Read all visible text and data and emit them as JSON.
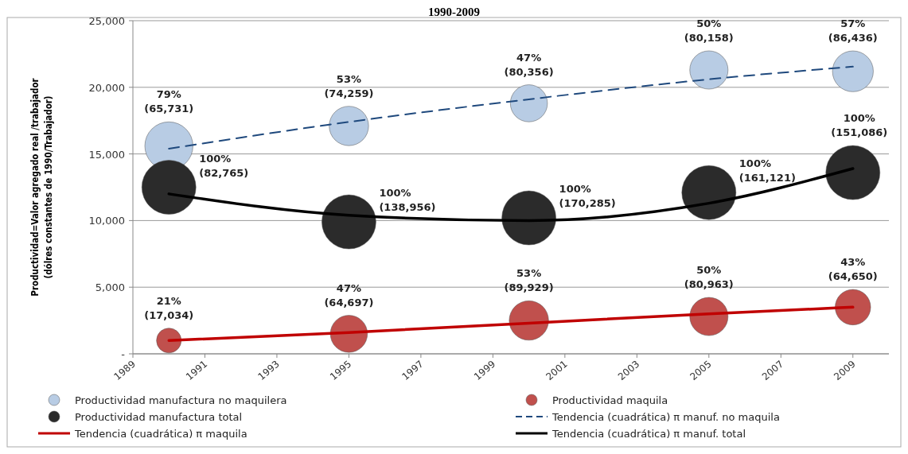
{
  "chart_data": {
    "type": "bubble",
    "title": "1990-2009",
    "ylabel": "Productividad=Valor agregado real /trabajador\n(dólres constantes de 1990/Trabajador)",
    "x": [
      1990,
      1995,
      2000,
      2005,
      2009
    ],
    "xlim": [
      1989,
      2010
    ],
    "xticks": [
      1989,
      1991,
      1993,
      1995,
      1997,
      1999,
      2001,
      2003,
      2005,
      2007,
      2009
    ],
    "ylim": [
      0,
      25000
    ],
    "yticks": [
      {
        "value": 0,
        "label": "-"
      },
      {
        "value": 5000,
        "label": "5,000"
      },
      {
        "value": 10000,
        "label": "10,000"
      },
      {
        "value": 15000,
        "label": "15,000"
      },
      {
        "value": 20000,
        "label": "20,000"
      },
      {
        "value": 25000,
        "label": "25,000"
      }
    ],
    "grid": "y",
    "legend": "bottom",
    "series": [
      {
        "name": "Productividad manufactura no maquilera",
        "color": "#b8cce4",
        "values": [
          15600,
          17100,
          18800,
          21300,
          21200
        ],
        "sizes": [
          0.79,
          0.53,
          0.47,
          0.5,
          0.57
        ],
        "value_labels": [
          "79%\n(65,731)",
          "53%\n(74,259)",
          "47%\n(80,356)",
          "50%\n(80,158)",
          "57%\n(86,436)"
        ]
      },
      {
        "name": "Productividad maquila",
        "color": "#c0504d",
        "values": [
          1000,
          1500,
          2500,
          2800,
          3500
        ],
        "sizes": [
          0.21,
          0.47,
          0.53,
          0.5,
          0.43
        ],
        "value_labels": [
          "21%\n(17,034)",
          "47%\n(64,697)",
          "53%\n(89,929)",
          "50%\n(80,963)",
          "43%\n(64,650)"
        ]
      },
      {
        "name": "Productividad manufactura total",
        "color": "#2b2b2b",
        "values": [
          12500,
          9900,
          10200,
          12100,
          13600
        ],
        "sizes": [
          1,
          1,
          1,
          1,
          1
        ],
        "value_labels": [
          "100%\n(82,765)",
          "100%\n(138,956)",
          "100%\n(170,285)",
          "100%\n(161,121)",
          "100%\n(151,086)"
        ]
      },
      {
        "name": "Tendencia (cuadrática) π manuf. no maquila",
        "type": "line",
        "color": "#1f497d",
        "line_style": "dashed",
        "x": [
          1990,
          1995,
          2000,
          2005,
          2009
        ],
        "values": [
          15400,
          17400,
          19100,
          20600,
          21550
        ]
      },
      {
        "name": "Tendencia (cuadrática) π maquila",
        "type": "line",
        "color": "#c00000",
        "line_style": "solid",
        "x": [
          1990,
          1995,
          2000,
          2005,
          2009
        ],
        "values": [
          1000,
          1600,
          2300,
          3000,
          3500
        ]
      },
      {
        "name": "Tendencia (cuadrática) π manuf. total",
        "type": "line",
        "color": "#000000",
        "line_style": "solid",
        "x": [
          1990,
          1995,
          2000,
          2005,
          2009
        ],
        "values": [
          12000,
          10400,
          10000,
          11300,
          13900
        ]
      }
    ]
  }
}
